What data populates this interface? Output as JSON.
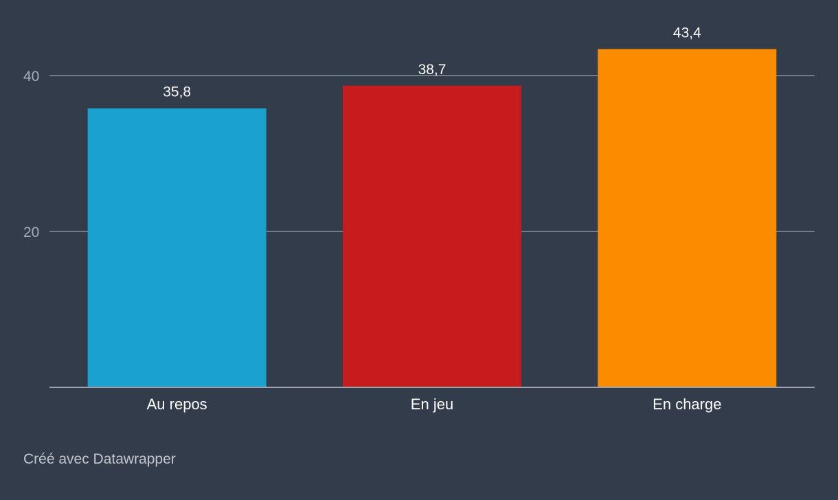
{
  "chart_data": {
    "type": "bar",
    "categories": [
      "Au repos",
      "En jeu",
      "En charge"
    ],
    "values": [
      35.8,
      38.7,
      43.4
    ],
    "value_labels": [
      "35,8",
      "38,7",
      "43,4"
    ],
    "colors": [
      "#1aa1cf",
      "#c71c1d",
      "#fb8c00"
    ],
    "ylim": [
      0,
      40.7
    ],
    "yticks": [
      20,
      40
    ],
    "ytick_labels": [
      "20",
      "40"
    ],
    "grid": true,
    "title": "",
    "xlabel": "",
    "ylabel": ""
  },
  "footer": {
    "credit": "Créé avec Datawrapper"
  }
}
